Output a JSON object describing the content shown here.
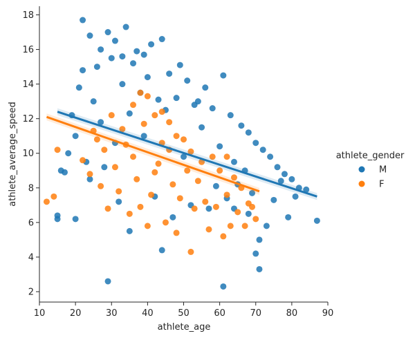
{
  "chart_data": {
    "type": "scatter",
    "title": "",
    "xlabel": "athlete_age",
    "ylabel": "athlete_average_speed",
    "xlim": [
      10,
      90
    ],
    "ylim": [
      1.4,
      18.5
    ],
    "xticks": [
      10,
      20,
      30,
      40,
      50,
      60,
      70,
      80,
      90
    ],
    "yticks": [
      2,
      4,
      6,
      8,
      10,
      12,
      14,
      16,
      18
    ],
    "grid": false,
    "legend": {
      "title": "athlete_gender",
      "placement": "right"
    },
    "series": [
      {
        "name": "M",
        "color": "#1f77b4",
        "regression": {
          "x": [
            15,
            87
          ],
          "y": [
            12.4,
            7.5
          ]
        },
        "points": [
          [
            22,
            17.7
          ],
          [
            34,
            17.3
          ],
          [
            29,
            17.0
          ],
          [
            24,
            16.8
          ],
          [
            31,
            16.5
          ],
          [
            44,
            16.6
          ],
          [
            41,
            16.3
          ],
          [
            27,
            16.0
          ],
          [
            37,
            15.9
          ],
          [
            30,
            15.5
          ],
          [
            36,
            15.2
          ],
          [
            26,
            15.0
          ],
          [
            22,
            14.8
          ],
          [
            40,
            14.4
          ],
          [
            46,
            14.6
          ],
          [
            51,
            14.2
          ],
          [
            56,
            13.8
          ],
          [
            61,
            14.5
          ],
          [
            33,
            14.0
          ],
          [
            21,
            13.8
          ],
          [
            38,
            13.5
          ],
          [
            48,
            13.2
          ],
          [
            53,
            12.8
          ],
          [
            58,
            12.6
          ],
          [
            63,
            12.2
          ],
          [
            25,
            13.0
          ],
          [
            19,
            12.2
          ],
          [
            66,
            11.6
          ],
          [
            68,
            11.2
          ],
          [
            70,
            10.6
          ],
          [
            72,
            10.2
          ],
          [
            74,
            9.8
          ],
          [
            76,
            9.2
          ],
          [
            78,
            8.8
          ],
          [
            80,
            8.5
          ],
          [
            82,
            8.0
          ],
          [
            84,
            7.9
          ],
          [
            87,
            6.1
          ],
          [
            79,
            6.3
          ],
          [
            73,
            5.8
          ],
          [
            71,
            5.0
          ],
          [
            70,
            4.2
          ],
          [
            71,
            3.3
          ],
          [
            61,
            2.3
          ],
          [
            29,
            2.6
          ],
          [
            44,
            4.4
          ],
          [
            35,
            5.5
          ],
          [
            20,
            6.2
          ],
          [
            15,
            6.4
          ],
          [
            15,
            6.2
          ],
          [
            16,
            9.0
          ],
          [
            17,
            8.9
          ],
          [
            18,
            10.0
          ],
          [
            20,
            11.0
          ],
          [
            23,
            9.5
          ],
          [
            28,
            9.2
          ],
          [
            32,
            7.2
          ],
          [
            42,
            7.5
          ],
          [
            47,
            6.3
          ],
          [
            52,
            7.0
          ],
          [
            57,
            6.8
          ],
          [
            62,
            7.4
          ],
          [
            65,
            8.2
          ],
          [
            67,
            9.0
          ],
          [
            69,
            7.7
          ],
          [
            55,
            11.5
          ],
          [
            45,
            12.5
          ],
          [
            39,
            11.0
          ],
          [
            50,
            9.8
          ],
          [
            60,
            10.4
          ],
          [
            64,
            9.5
          ],
          [
            59,
            8.1
          ],
          [
            43,
            13.1
          ],
          [
            35,
            12.3
          ],
          [
            27,
            11.8
          ],
          [
            31,
            10.6
          ],
          [
            24,
            8.5
          ],
          [
            75,
            7.3
          ],
          [
            77,
            8.4
          ],
          [
            81,
            7.5
          ],
          [
            68,
            6.5
          ],
          [
            64,
            6.8
          ],
          [
            49,
            15.1
          ],
          [
            39,
            15.7
          ],
          [
            33,
            15.6
          ],
          [
            54,
            13.0
          ]
        ]
      },
      {
        "name": "F",
        "color": "#ff7f0e",
        "regression": {
          "x": [
            12,
            71
          ],
          "y": [
            12.1,
            7.8
          ]
        },
        "points": [
          [
            12,
            7.2
          ],
          [
            14,
            7.5
          ],
          [
            15,
            10.2
          ],
          [
            22,
            9.6
          ],
          [
            25,
            11.3
          ],
          [
            28,
            10.2
          ],
          [
            30,
            12.2
          ],
          [
            33,
            11.4
          ],
          [
            36,
            12.8
          ],
          [
            38,
            13.5
          ],
          [
            40,
            13.3
          ],
          [
            42,
            12.2
          ],
          [
            44,
            12.4
          ],
          [
            46,
            11.8
          ],
          [
            48,
            11.0
          ],
          [
            50,
            10.8
          ],
          [
            52,
            10.1
          ],
          [
            55,
            9.5
          ],
          [
            58,
            9.8
          ],
          [
            60,
            9.0
          ],
          [
            62,
            9.8
          ],
          [
            64,
            8.6
          ],
          [
            66,
            8.0
          ],
          [
            68,
            7.1
          ],
          [
            70,
            6.2
          ],
          [
            63,
            5.8
          ],
          [
            61,
            5.2
          ],
          [
            52,
            4.3
          ],
          [
            48,
            5.4
          ],
          [
            45,
            6.0
          ],
          [
            40,
            5.8
          ],
          [
            35,
            6.5
          ],
          [
            29,
            6.8
          ],
          [
            27,
            8.1
          ],
          [
            24,
            8.8
          ],
          [
            31,
            9.2
          ],
          [
            37,
            8.5
          ],
          [
            41,
            7.6
          ],
          [
            43,
            9.4
          ],
          [
            47,
            8.2
          ],
          [
            49,
            7.4
          ],
          [
            53,
            6.8
          ],
          [
            56,
            7.2
          ],
          [
            59,
            6.9
          ],
          [
            57,
            5.6
          ],
          [
            34,
            10.5
          ],
          [
            39,
            11.7
          ],
          [
            46,
            10.2
          ],
          [
            51,
            9.0
          ],
          [
            54,
            8.4
          ],
          [
            62,
            7.6
          ],
          [
            65,
            6.6
          ],
          [
            67,
            5.8
          ],
          [
            69,
            6.9
          ],
          [
            32,
            7.8
          ],
          [
            36,
            9.8
          ],
          [
            44,
            10.6
          ],
          [
            38,
            6.9
          ],
          [
            42,
            8.9
          ],
          [
            26,
            10.8
          ]
        ]
      }
    ]
  }
}
